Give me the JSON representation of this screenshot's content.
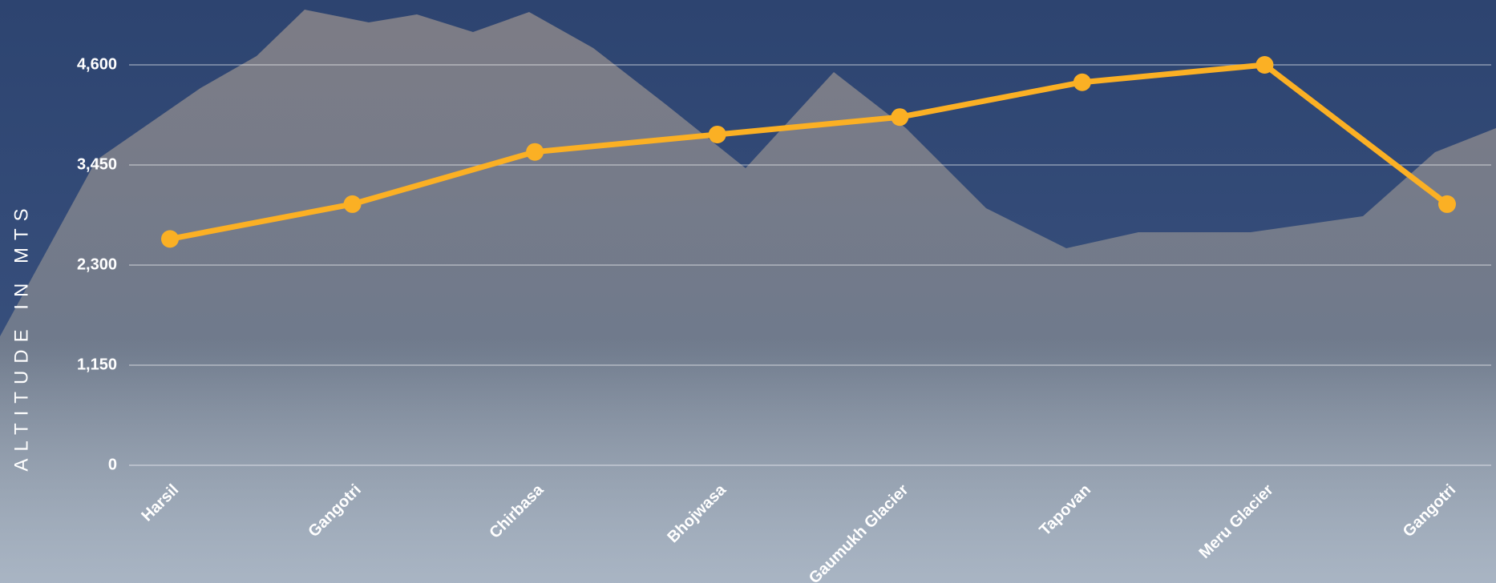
{
  "chart_data": {
    "type": "line",
    "y_axis_label": "ALTITUDE IN MTS",
    "categories": [
      "Harsil",
      "Gangotri",
      "Chirbasa",
      "Bhojwasa",
      "Gaumukh Glacier",
      "Tapovan",
      "Meru Glacier",
      "Gangotri"
    ],
    "series": [
      {
        "color": "#fbb024",
        "values": [
          2600,
          3000,
          3600,
          3800,
          4000,
          4400,
          4600,
          3000
        ]
      }
    ],
    "ylim": [
      0,
      4600
    ],
    "yticks": [
      0,
      {
        "value": 1150,
        "label": "1,150"
      },
      {
        "value": 2300,
        "label": "2,300"
      },
      {
        "value": 3450,
        "label": "3,450"
      },
      {
        "value": 4600,
        "label": "4,600"
      }
    ],
    "grid": true
  }
}
